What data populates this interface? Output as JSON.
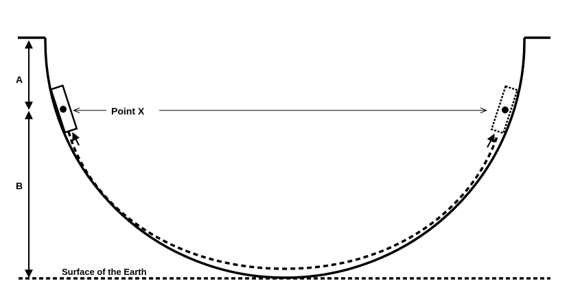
{
  "labels": {
    "a": "A",
    "b": "B",
    "point_x": "Point X",
    "surface": "Surface of the Earth"
  },
  "colors": {
    "ink": "#000000",
    "background": "#ffffff"
  }
}
